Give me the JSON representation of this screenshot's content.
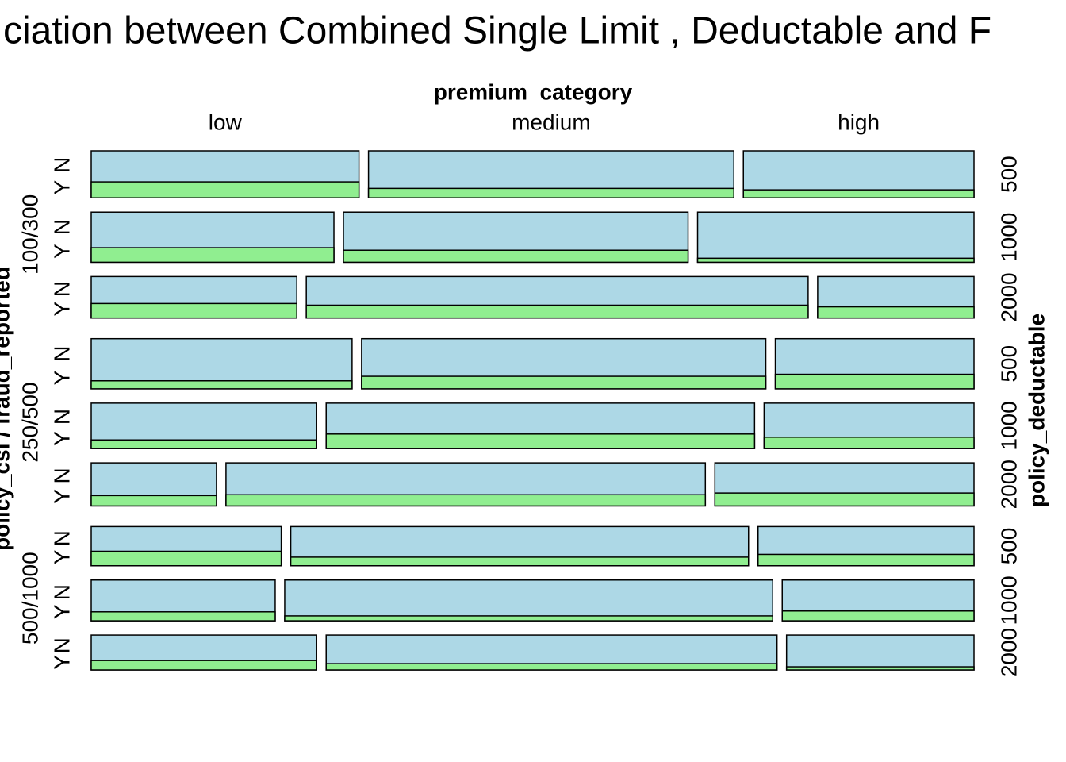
{
  "chart_data": {
    "type": "mosaic",
    "title": "ciation between Combined Single Limit , Deductable and F",
    "x_label": "premium_category",
    "y_label": "policy_csl / fraud_reported",
    "y2_label": "policy_deductable",
    "columns": [
      "low",
      "medium",
      "high"
    ],
    "fraud_levels": [
      "Y",
      "N"
    ],
    "colors": {
      "N": "#add8e6",
      "Y": "#90ee90"
    },
    "groups": [
      {
        "name": "100/300",
        "rows": [
          {
            "name": "500",
            "share": 12.0,
            "widths": [
              31.0,
              42.3,
              26.7
            ],
            "fraud_Y": [
              34,
              20,
              17
            ]
          },
          {
            "name": "1000",
            "share": 12.8,
            "widths": [
              28.1,
              39.9,
              32.0
            ],
            "fraud_Y": [
              29,
              24,
              8
            ]
          },
          {
            "name": "2000",
            "share": 10.6,
            "widths": [
              23.8,
              58.1,
              18.1
            ],
            "fraud_Y": [
              35,
              31,
              27
            ]
          }
        ]
      },
      {
        "name": "250/500",
        "rows": [
          {
            "name": "500",
            "share": 12.8,
            "widths": [
              30.2,
              46.8,
              23.0
            ],
            "fraud_Y": [
              16,
              25,
              29
            ]
          },
          {
            "name": "1000",
            "share": 11.6,
            "widths": [
              26.1,
              49.6,
              24.3
            ],
            "fraud_Y": [
              19,
              32,
              25
            ]
          },
          {
            "name": "2000",
            "share": 11.0,
            "widths": [
              14.5,
              55.5,
              30.0
            ],
            "fraud_Y": [
              24,
              26,
              30
            ]
          }
        ]
      },
      {
        "name": "500/1000",
        "rows": [
          {
            "name": "500",
            "share": 10.0,
            "widths": [
              22.0,
              53.0,
              25.0
            ],
            "fraud_Y": [
              37,
              22,
              29
            ]
          },
          {
            "name": "1000",
            "share": 10.4,
            "widths": [
              21.3,
              56.5,
              22.2
            ],
            "fraud_Y": [
              22,
              12,
              24
            ]
          },
          {
            "name": "2000",
            "share": 8.9,
            "widths": [
              26.1,
              52.2,
              21.7
            ],
            "fraud_Y": [
              27,
              18,
              9
            ]
          }
        ]
      }
    ]
  }
}
